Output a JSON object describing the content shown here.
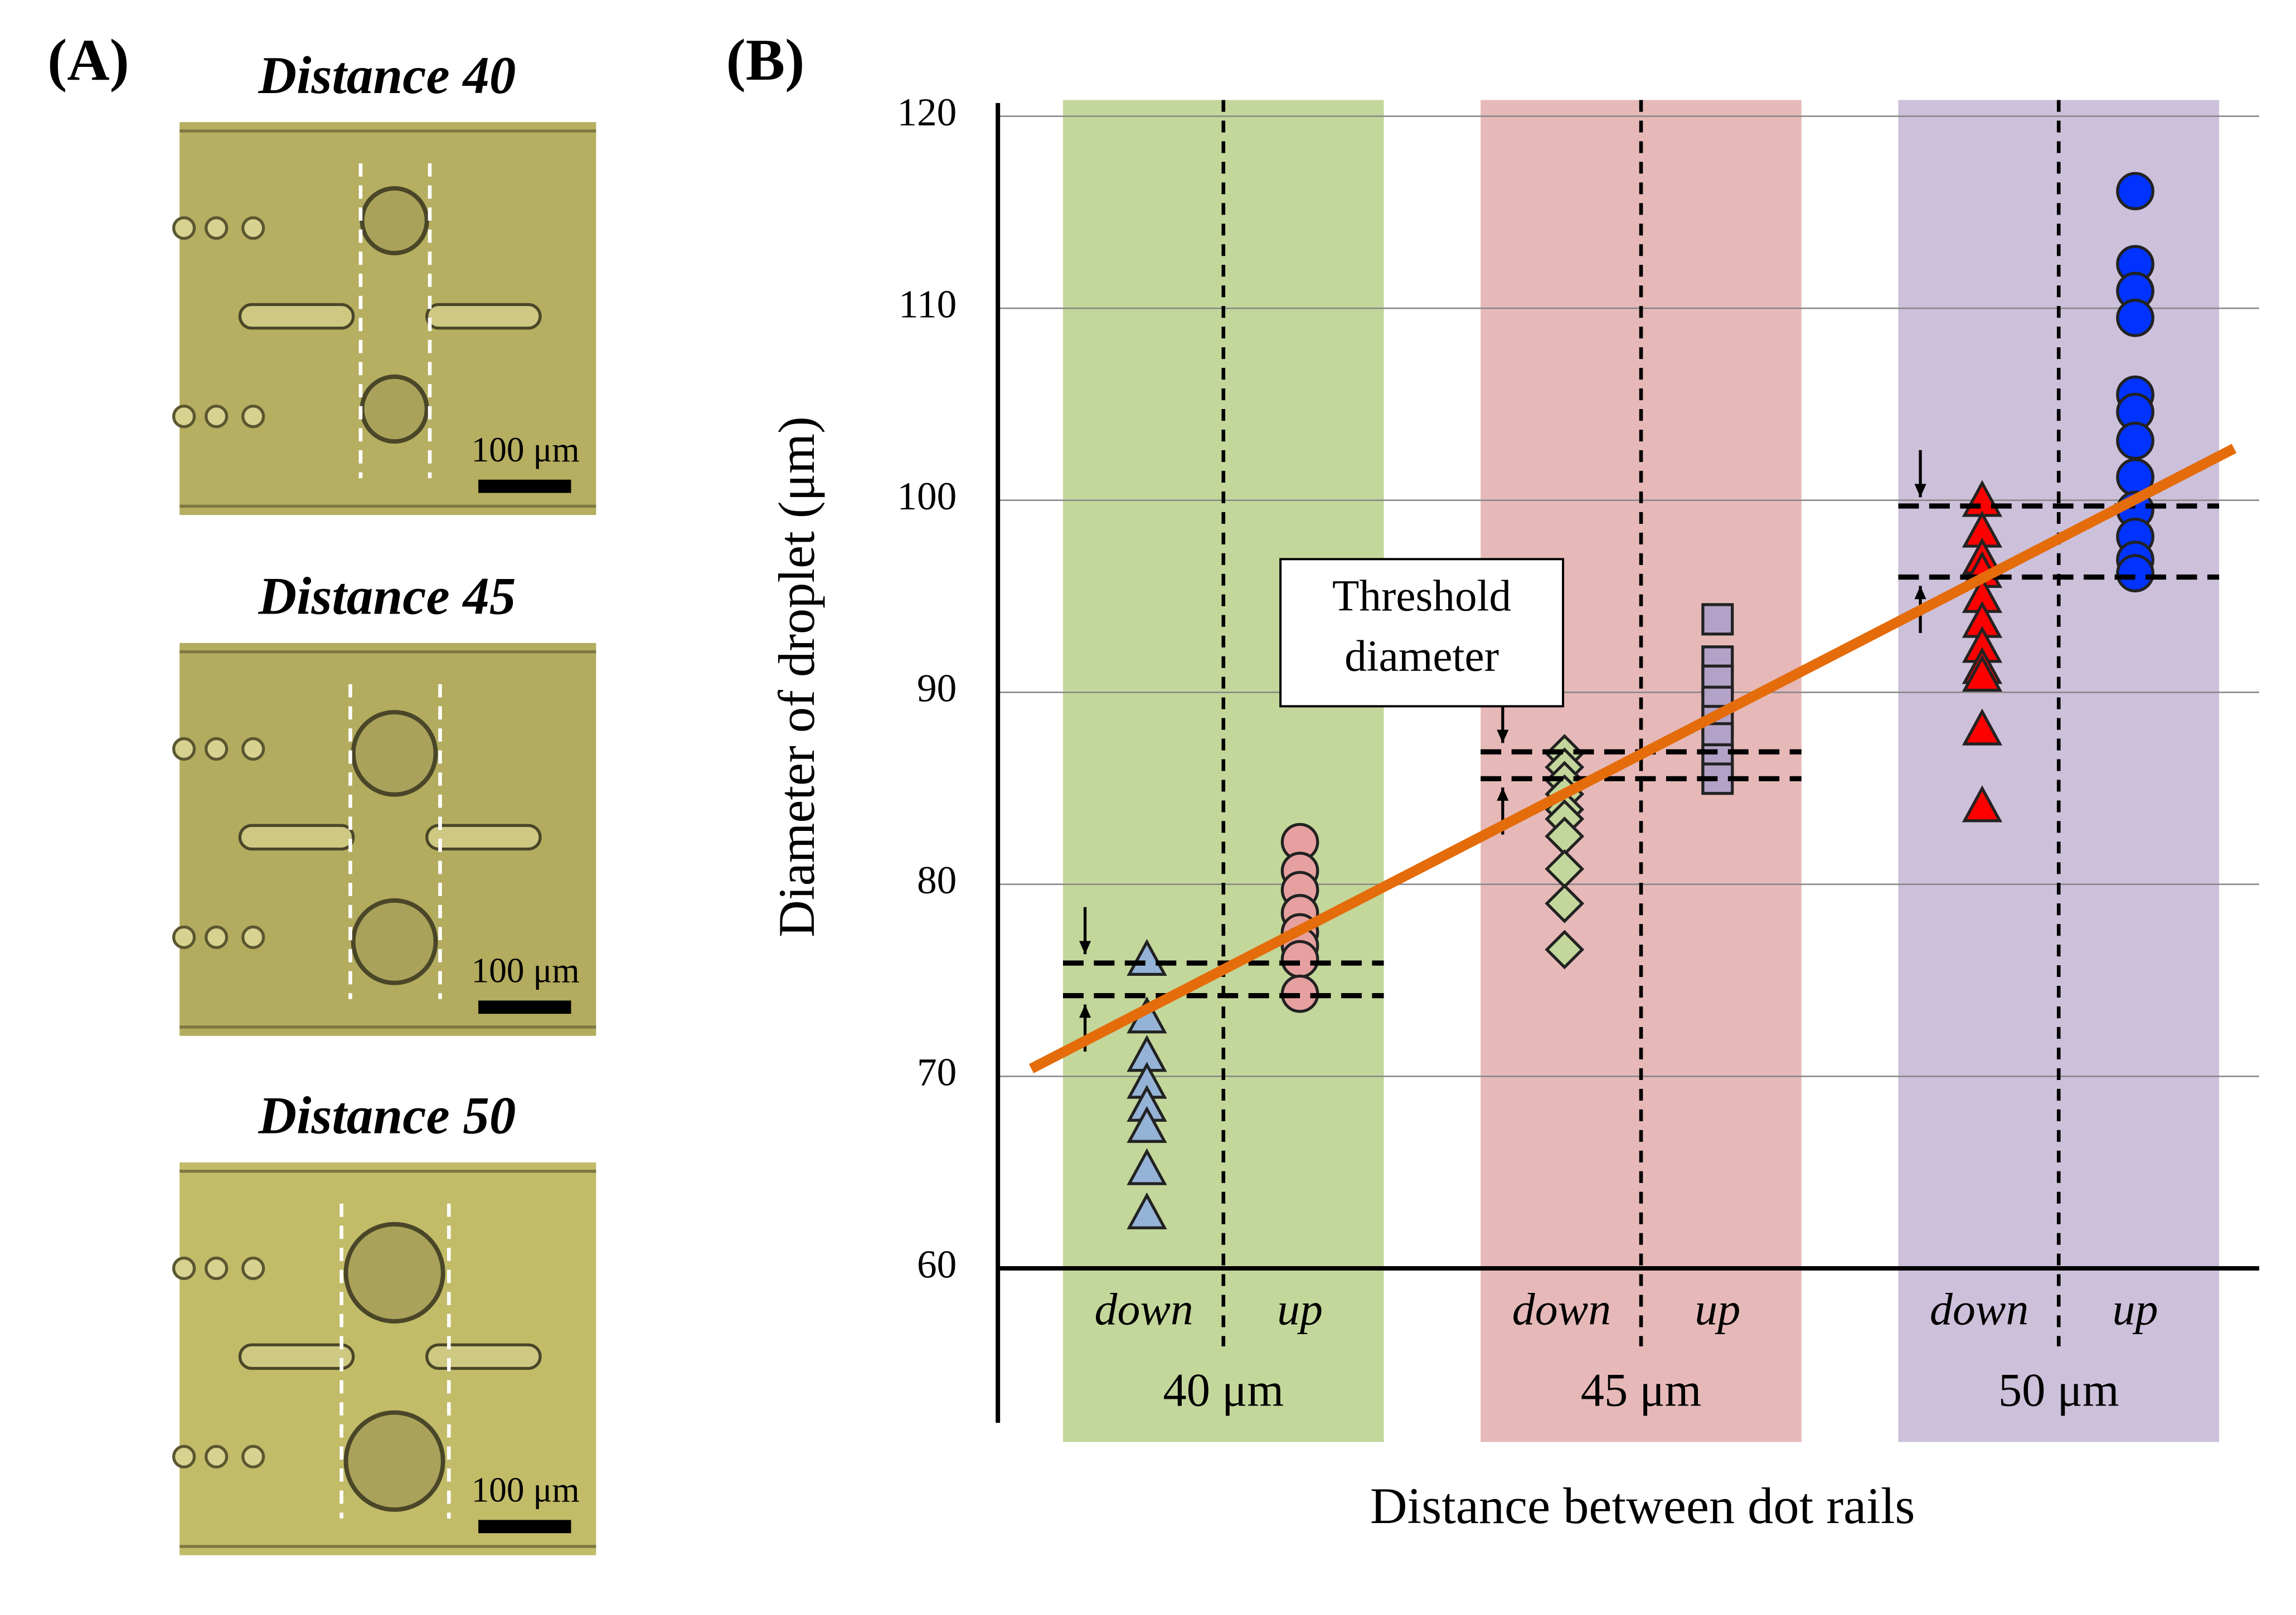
{
  "panel_a": {
    "label": "(A)",
    "images": [
      {
        "title": "Distance 40",
        "scale": "100 μm"
      },
      {
        "title": "Distance 45",
        "scale": "100 μm"
      },
      {
        "title": "Distance 50",
        "scale": "100 μm"
      }
    ]
  },
  "chart_data": {
    "type": "scatter",
    "panel_label": "(B)",
    "ylabel": "Diameter of droplet (μm)",
    "xlabel": "Distance between dot rails",
    "ylim": [
      60,
      120
    ],
    "yticks": [
      60,
      70,
      80,
      90,
      100,
      110,
      120
    ],
    "xlim": [
      37.3,
      52.4
    ],
    "grid": true,
    "annotation": [
      "Threshold",
      "diameter"
    ],
    "trend": {
      "x": [
        37.7,
        52.1
      ],
      "y": [
        70.4,
        102.7
      ],
      "color": "#e46c0a"
    },
    "groups": [
      {
        "label": "40 μm",
        "x": 40,
        "band_color": "#c4d79b",
        "threshold": [
          75.9,
          74.2
        ],
        "series": [
          {
            "name": "down",
            "marker": "triangle",
            "color": "#95b3d7",
            "values": [
              76.0,
              73.0,
              71.0,
              69.6,
              68.4,
              67.3,
              65.1,
              62.8
            ]
          },
          {
            "name": "up",
            "marker": "circle",
            "color": "#e6a0a0",
            "values": [
              82.2,
              80.7,
              79.7,
              78.5,
              77.5,
              76.8,
              76.1,
              74.3
            ]
          }
        ]
      },
      {
        "label": "45 μm",
        "x": 45,
        "band_color": "#e6b9b8",
        "threshold": [
          86.9,
          85.5
        ],
        "series": [
          {
            "name": "down",
            "marker": "diamond",
            "color": "#c3d69b",
            "values": [
              86.8,
              86.1,
              85.4,
              84.7,
              83.9,
              83.4,
              82.5,
              80.8,
              79.0,
              76.6
            ]
          },
          {
            "name": "up",
            "marker": "square",
            "color": "#b3a2c7",
            "values": [
              93.8,
              91.6,
              90.6,
              89.5,
              88.5,
              87.6,
              86.5,
              85.5
            ]
          }
        ]
      },
      {
        "label": "50 μm",
        "x": 50,
        "band_color": "#ccc0da",
        "threshold": [
          99.7,
          96.0
        ],
        "series": [
          {
            "name": "down",
            "marker": "triangle",
            "color": "#ff0000",
            "values": [
              99.9,
              98.3,
              96.9,
              96.2,
              94.9,
              93.6,
              92.3,
              91.2,
              90.8,
              88.0,
              84.0
            ]
          },
          {
            "name": "up",
            "marker": "circle",
            "color": "#0033ff",
            "values": [
              116.1,
              112.3,
              110.9,
              109.5,
              105.5,
              104.6,
              103.1,
              101.2,
              99.5,
              98.1,
              96.9,
              96.2
            ]
          }
        ]
      }
    ]
  }
}
